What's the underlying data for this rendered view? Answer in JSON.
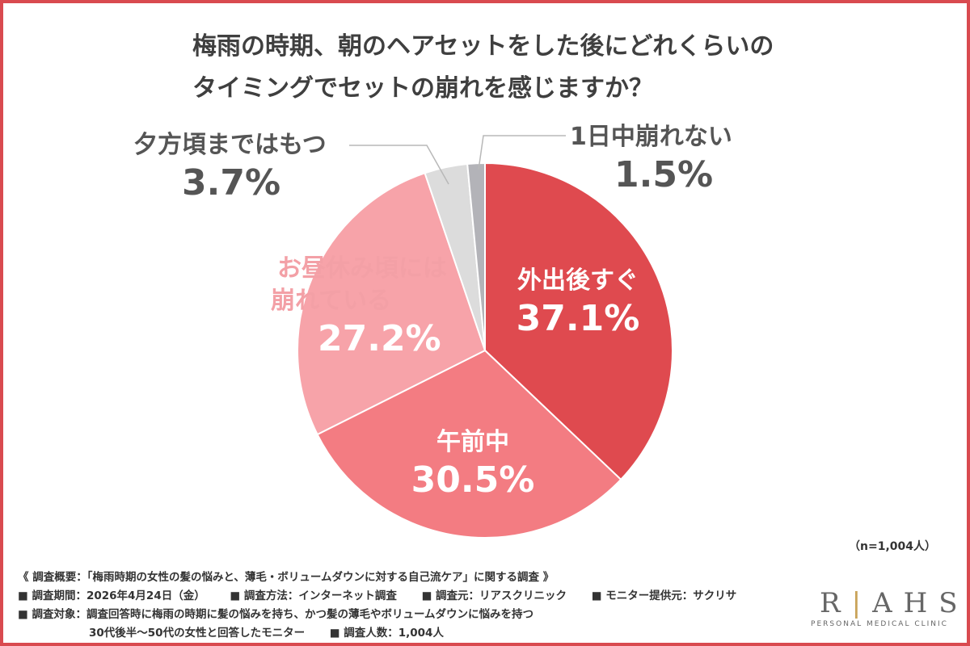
{
  "chart_data": {
    "type": "pie",
    "title_lines": [
      "梅雨の時期、朝のヘアセットをした後にどれくらいの",
      "タイミングでセットの崩れを感じますか？"
    ],
    "slices": [
      {
        "name": "外出後すぐ",
        "pct_label": "37.1%",
        "value": 37.1,
        "color": "#df4a4f"
      },
      {
        "name": "午前中",
        "pct_label": "30.5%",
        "value": 30.5,
        "color": "#f37c82"
      },
      {
        "name_lines": [
          "お昼休み頃には",
          "崩れている"
        ],
        "pct_label": "27.2%",
        "value": 27.2,
        "color": "#f7a3a9"
      },
      {
        "name": "夕方頃まではもつ",
        "pct_label": "3.7%",
        "value": 3.7,
        "color": "#dcdcdc"
      },
      {
        "name": "1日中崩れない",
        "pct_label": "1.5%",
        "value": 1.5,
        "color": "#b3b3b8"
      }
    ],
    "sample_note": "（n=1,004人）"
  },
  "footer": {
    "survey_title": "《 調査概要：「梅雨時期の女性の髪の悩みと、薄毛・ボリュームダウンに対する自己流ケア」に関する調査 》",
    "period": "■ 調査期間：2026年4月24日（金）",
    "method": "■ 調査方法：インターネット調査",
    "source": "■ 調査元：リアスクリニック",
    "provider": "■ モニター提供元：サクリサ",
    "target": "■ 調査対象：調査回答時に梅雨の時期に髪の悩みを持ち、かつ髪の薄毛やボリュームダウンに悩みを持つ",
    "target_cont": "30代後半〜50代の女性と回答したモニター",
    "count": "■ 調査人数：1,004人"
  },
  "logo": {
    "mark_left": "R",
    "mark_bar": "|",
    "mark_right": "AHS",
    "subtitle": "PERSONAL MEDICAL CLINIC"
  }
}
